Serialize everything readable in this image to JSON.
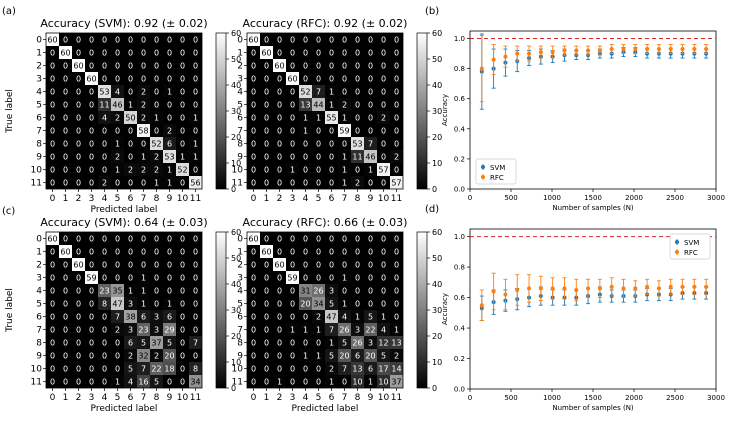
{
  "panel_labels": [
    "(a)",
    "(b)",
    "(c)",
    "(d)"
  ],
  "colors": {
    "svm": "#1f77b4",
    "rfc": "#ff7f0e",
    "ref_line": "#d62728",
    "text": "#000000",
    "frame": "#000000"
  },
  "colorbar_ticks": [
    0,
    10,
    20,
    30,
    40,
    50,
    60
  ],
  "chart_data": [
    {
      "type": "heatmap",
      "id": "cm-a-svm",
      "panel": "(a)",
      "title": "Accuracy (SVM): 0.92 (± 0.02)",
      "xlabel": "Predicted label",
      "ylabel": "True label",
      "labels": [
        "0",
        "1",
        "2",
        "3",
        "4",
        "5",
        "6",
        "7",
        "8",
        "9",
        "10",
        "11"
      ],
      "vmin": 0,
      "vmax": 60,
      "matrix": [
        [
          60,
          0,
          0,
          0,
          0,
          0,
          0,
          0,
          0,
          0,
          0,
          0
        ],
        [
          0,
          60,
          0,
          0,
          0,
          0,
          0,
          0,
          0,
          0,
          0,
          0
        ],
        [
          0,
          0,
          60,
          0,
          0,
          0,
          0,
          0,
          0,
          0,
          0,
          0
        ],
        [
          0,
          0,
          0,
          60,
          0,
          0,
          0,
          0,
          0,
          0,
          0,
          0
        ],
        [
          0,
          0,
          0,
          0,
          53,
          4,
          0,
          2,
          0,
          1,
          0,
          0
        ],
        [
          0,
          0,
          0,
          0,
          11,
          46,
          1,
          2,
          0,
          0,
          0,
          0
        ],
        [
          0,
          0,
          0,
          0,
          4,
          2,
          50,
          2,
          1,
          0,
          0,
          1
        ],
        [
          0,
          0,
          0,
          0,
          0,
          0,
          0,
          58,
          0,
          2,
          0,
          0
        ],
        [
          0,
          0,
          0,
          0,
          0,
          1,
          0,
          0,
          52,
          6,
          0,
          1
        ],
        [
          0,
          0,
          0,
          0,
          0,
          2,
          0,
          1,
          2,
          53,
          1,
          1
        ],
        [
          0,
          0,
          0,
          0,
          0,
          1,
          2,
          2,
          2,
          1,
          52,
          0
        ],
        [
          0,
          0,
          0,
          0,
          2,
          0,
          0,
          0,
          1,
          1,
          0,
          56
        ]
      ]
    },
    {
      "type": "heatmap",
      "id": "cm-a-rfc",
      "panel": "(a)",
      "title": "Accuracy (RFC): 0.92 (± 0.02)",
      "xlabel": "",
      "ylabel": "",
      "labels": [
        "0",
        "1",
        "2",
        "3",
        "4",
        "5",
        "6",
        "7",
        "8",
        "9",
        "10",
        "11"
      ],
      "vmin": 0,
      "vmax": 60,
      "matrix": [
        [
          60,
          0,
          0,
          0,
          0,
          0,
          0,
          0,
          0,
          0,
          0,
          0
        ],
        [
          0,
          60,
          0,
          0,
          0,
          0,
          0,
          0,
          0,
          0,
          0,
          0
        ],
        [
          0,
          0,
          60,
          0,
          0,
          0,
          0,
          0,
          0,
          0,
          0,
          0
        ],
        [
          0,
          0,
          0,
          60,
          0,
          0,
          0,
          0,
          0,
          0,
          0,
          0
        ],
        [
          0,
          0,
          0,
          0,
          52,
          7,
          1,
          0,
          0,
          0,
          0,
          0
        ],
        [
          0,
          0,
          0,
          0,
          13,
          44,
          1,
          2,
          0,
          0,
          0,
          0
        ],
        [
          0,
          0,
          0,
          0,
          1,
          1,
          55,
          1,
          0,
          0,
          2,
          0
        ],
        [
          0,
          0,
          0,
          0,
          1,
          0,
          0,
          59,
          0,
          0,
          0,
          0
        ],
        [
          0,
          0,
          0,
          0,
          0,
          0,
          0,
          0,
          53,
          7,
          0,
          0
        ],
        [
          0,
          0,
          0,
          0,
          0,
          0,
          0,
          1,
          11,
          46,
          0,
          2
        ],
        [
          0,
          0,
          0,
          1,
          0,
          0,
          0,
          1,
          0,
          1,
          57,
          0
        ],
        [
          0,
          0,
          0,
          0,
          0,
          0,
          0,
          1,
          2,
          0,
          0,
          57
        ]
      ]
    },
    {
      "type": "heatmap",
      "id": "cm-c-svm",
      "panel": "(c)",
      "title": "Accuracy (SVM): 0.64 (± 0.03)",
      "xlabel": "Predicted label",
      "ylabel": "True label",
      "labels": [
        "0",
        "1",
        "2",
        "3",
        "4",
        "5",
        "6",
        "7",
        "8",
        "9",
        "10",
        "11"
      ],
      "vmin": 0,
      "vmax": 60,
      "matrix": [
        [
          60,
          0,
          0,
          0,
          0,
          0,
          0,
          0,
          0,
          0,
          0,
          0
        ],
        [
          0,
          60,
          0,
          0,
          0,
          0,
          0,
          0,
          0,
          0,
          0,
          0
        ],
        [
          0,
          0,
          60,
          0,
          0,
          0,
          0,
          0,
          0,
          0,
          0,
          0
        ],
        [
          0,
          0,
          0,
          59,
          0,
          0,
          0,
          1,
          0,
          0,
          0,
          0
        ],
        [
          0,
          0,
          0,
          0,
          23,
          35,
          1,
          1,
          0,
          0,
          0,
          0
        ],
        [
          0,
          0,
          0,
          0,
          8,
          47,
          3,
          1,
          0,
          1,
          0,
          0
        ],
        [
          0,
          0,
          0,
          0,
          0,
          7,
          38,
          6,
          3,
          6,
          0,
          0
        ],
        [
          0,
          0,
          0,
          0,
          0,
          2,
          3,
          23,
          3,
          29,
          0,
          0
        ],
        [
          0,
          0,
          0,
          0,
          0,
          0,
          6,
          5,
          37,
          5,
          0,
          7
        ],
        [
          0,
          0,
          0,
          0,
          0,
          0,
          2,
          32,
          2,
          20,
          0,
          0
        ],
        [
          0,
          0,
          0,
          0,
          0,
          0,
          5,
          7,
          22,
          18,
          0,
          8
        ],
        [
          0,
          0,
          0,
          0,
          0,
          1,
          4,
          16,
          5,
          0,
          0,
          34
        ]
      ]
    },
    {
      "type": "heatmap",
      "id": "cm-c-rfc",
      "panel": "(c)",
      "title": "Accuracy (RFC): 0.66 (± 0.03)",
      "xlabel": "Predicted label",
      "ylabel": "",
      "labels": [
        "0",
        "1",
        "2",
        "3",
        "4",
        "5",
        "6",
        "7",
        "8",
        "9",
        "10",
        "11"
      ],
      "vmin": 0,
      "vmax": 60,
      "matrix": [
        [
          60,
          0,
          0,
          0,
          0,
          0,
          0,
          0,
          0,
          0,
          0,
          0
        ],
        [
          0,
          60,
          0,
          0,
          0,
          0,
          0,
          0,
          0,
          0,
          0,
          0
        ],
        [
          0,
          0,
          60,
          0,
          0,
          0,
          0,
          0,
          0,
          0,
          0,
          0
        ],
        [
          0,
          0,
          0,
          59,
          0,
          0,
          0,
          1,
          0,
          0,
          0,
          0
        ],
        [
          0,
          0,
          0,
          0,
          31,
          26,
          3,
          0,
          0,
          0,
          0,
          0
        ],
        [
          0,
          0,
          0,
          0,
          20,
          34,
          5,
          1,
          0,
          0,
          0,
          0
        ],
        [
          0,
          0,
          0,
          0,
          0,
          2,
          47,
          4,
          1,
          5,
          1,
          0
        ],
        [
          0,
          0,
          0,
          1,
          1,
          1,
          7,
          26,
          3,
          22,
          4,
          1
        ],
        [
          0,
          0,
          0,
          0,
          0,
          0,
          1,
          5,
          26,
          3,
          12,
          13
        ],
        [
          0,
          0,
          0,
          0,
          1,
          1,
          5,
          20,
          6,
          20,
          5,
          2
        ],
        [
          0,
          0,
          0,
          0,
          0,
          0,
          2,
          7,
          13,
          6,
          17,
          14
        ],
        [
          0,
          0,
          1,
          0,
          0,
          0,
          1,
          0,
          10,
          1,
          10,
          37
        ]
      ]
    },
    {
      "type": "scatter",
      "id": "acc-b",
      "panel": "(b)",
      "title": "",
      "xlabel": "Number of samples (N)",
      "ylabel": "Accuracy",
      "xlim": [
        0,
        3000
      ],
      "ylim": [
        0,
        1.05
      ],
      "xticks": [
        0,
        500,
        1000,
        1500,
        2000,
        2500,
        3000
      ],
      "yticks": [
        0.0,
        0.2,
        0.4,
        0.6,
        0.8,
        1.0
      ],
      "reference_y": 1.0,
      "legend_position": "lower-left",
      "series": [
        {
          "name": "SVM",
          "x": [
            144,
            288,
            432,
            576,
            720,
            864,
            1008,
            1152,
            1296,
            1440,
            1584,
            1728,
            1872,
            2016,
            2160,
            2304,
            2448,
            2592,
            2736,
            2880
          ],
          "y": [
            0.78,
            0.8,
            0.84,
            0.85,
            0.87,
            0.88,
            0.88,
            0.89,
            0.89,
            0.89,
            0.9,
            0.9,
            0.91,
            0.91,
            0.9,
            0.9,
            0.9,
            0.9,
            0.9,
            0.9
          ],
          "err": [
            0.25,
            0.13,
            0.09,
            0.07,
            0.05,
            0.05,
            0.04,
            0.04,
            0.03,
            0.03,
            0.03,
            0.03,
            0.03,
            0.03,
            0.03,
            0.03,
            0.03,
            0.03,
            0.03,
            0.03
          ]
        },
        {
          "name": "RFC",
          "x": [
            144,
            288,
            432,
            576,
            720,
            864,
            1008,
            1152,
            1296,
            1440,
            1584,
            1728,
            1872,
            2016,
            2160,
            2304,
            2448,
            2592,
            2736,
            2880
          ],
          "y": [
            0.8,
            0.86,
            0.88,
            0.9,
            0.9,
            0.91,
            0.91,
            0.92,
            0.92,
            0.92,
            0.92,
            0.93,
            0.93,
            0.93,
            0.93,
            0.93,
            0.93,
            0.93,
            0.93,
            0.93
          ],
          "err": [
            0.22,
            0.1,
            0.07,
            0.05,
            0.05,
            0.04,
            0.04,
            0.03,
            0.03,
            0.03,
            0.03,
            0.03,
            0.03,
            0.03,
            0.03,
            0.03,
            0.03,
            0.03,
            0.03,
            0.03
          ]
        }
      ]
    },
    {
      "type": "scatter",
      "id": "acc-d",
      "panel": "(d)",
      "title": "",
      "xlabel": "Number of samples (N)",
      "ylabel": "Accuracy",
      "xlim": [
        0,
        3000
      ],
      "ylim": [
        0,
        1.05
      ],
      "xticks": [
        0,
        500,
        1000,
        1500,
        2000,
        2500,
        3000
      ],
      "yticks": [
        0.0,
        0.2,
        0.4,
        0.6,
        0.8,
        1.0
      ],
      "reference_y": 1.0,
      "legend_position": "top-right",
      "series": [
        {
          "name": "SVM",
          "x": [
            144,
            288,
            432,
            576,
            720,
            864,
            1008,
            1152,
            1296,
            1440,
            1584,
            1728,
            1872,
            2016,
            2160,
            2304,
            2448,
            2592,
            2736,
            2880
          ],
          "y": [
            0.53,
            0.57,
            0.58,
            0.59,
            0.6,
            0.61,
            0.6,
            0.6,
            0.6,
            0.61,
            0.62,
            0.61,
            0.61,
            0.61,
            0.62,
            0.62,
            0.62,
            0.63,
            0.63,
            0.63
          ],
          "err": [
            0.08,
            0.08,
            0.07,
            0.07,
            0.06,
            0.06,
            0.05,
            0.05,
            0.05,
            0.05,
            0.05,
            0.04,
            0.04,
            0.04,
            0.04,
            0.04,
            0.04,
            0.04,
            0.04,
            0.04
          ]
        },
        {
          "name": "RFC",
          "x": [
            144,
            288,
            432,
            576,
            720,
            864,
            1008,
            1152,
            1296,
            1440,
            1584,
            1728,
            1872,
            2016,
            2160,
            2304,
            2448,
            2592,
            2736,
            2880
          ],
          "y": [
            0.55,
            0.64,
            0.62,
            0.65,
            0.66,
            0.66,
            0.66,
            0.66,
            0.65,
            0.66,
            0.66,
            0.67,
            0.66,
            0.66,
            0.67,
            0.66,
            0.67,
            0.67,
            0.67,
            0.67
          ],
          "err": [
            0.1,
            0.12,
            0.1,
            0.1,
            0.09,
            0.08,
            0.07,
            0.07,
            0.07,
            0.06,
            0.06,
            0.06,
            0.06,
            0.05,
            0.05,
            0.05,
            0.05,
            0.05,
            0.05,
            0.05
          ]
        }
      ]
    }
  ]
}
